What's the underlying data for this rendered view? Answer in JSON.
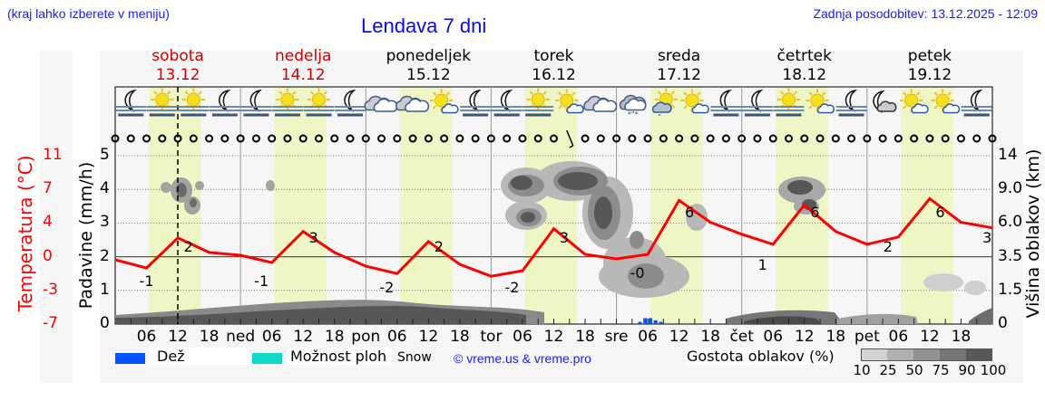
{
  "header": {
    "hint": "(kraj lahko izberete v meniju)",
    "title": "Lendava 7 dni",
    "updated": "Zadnja posodobitev: 13.12.2025 - 12:09"
  },
  "days": [
    {
      "name": "sobota",
      "date": "13.12",
      "color": "#d00000"
    },
    {
      "name": "nedelja",
      "date": "14.12",
      "color": "#d00000"
    },
    {
      "name": "ponedeljek",
      "date": "15.12",
      "color": "#000000"
    },
    {
      "name": "torek",
      "date": "16.12",
      "color": "#000000"
    },
    {
      "name": "sreda",
      "date": "17.12",
      "color": "#000000"
    },
    {
      "name": "četrtek",
      "date": "18.12",
      "color": "#000000"
    },
    {
      "name": "petek",
      "date": "19.12",
      "color": "#000000"
    }
  ],
  "weather_icons": [
    "moon-fog",
    "sun-fog",
    "sun-fog",
    "moon-fog",
    "moon-fog",
    "sun-fog",
    "sun-fog",
    "moon-fog",
    "cloudy",
    "cloudy",
    "sun-cloud",
    "moon-fog",
    "moon-fog",
    "sun-fog",
    "sun-cloud",
    "cloudy",
    "cloudy-snow",
    "sun-cloud-rain",
    "sun-cloud",
    "moon-fog",
    "moon-fog",
    "sun-fog",
    "sun-cloud",
    "moon-fog",
    "moon-cloud",
    "sun-cloud",
    "sun-cloud",
    "moon-fog"
  ],
  "axes": {
    "temp_label": "Temperatura (°C)",
    "temp_ticks": [
      "11",
      "7",
      "4",
      "0",
      "-3",
      "-7"
    ],
    "precip_label": "Padavine (mm/h)",
    "precip_ticks": [
      "5",
      "4",
      "3",
      "2",
      "1",
      "0"
    ],
    "cloud_label": "Višina oblakov (km)",
    "cloud_ticks": [
      "14",
      "9.0",
      "6.0",
      "3.5",
      "1.5",
      "0"
    ],
    "x_ticks": [
      "06",
      "12",
      "18",
      "ned",
      "06",
      "12",
      "18",
      "pon",
      "06",
      "12",
      "18",
      "tor",
      "06",
      "12",
      "18",
      "sre",
      "06",
      "12",
      "18",
      "čet",
      "06",
      "12",
      "18",
      "pet",
      "06",
      "12",
      "18"
    ]
  },
  "legend": {
    "rain_label": "Dež",
    "rain_color": "#0055ff",
    "showers_label": "Možnost ploh",
    "showers_color": "#11d9c8",
    "snow_label": "Snow",
    "credit": "© vreme.us & vreme.pro",
    "cloud_density_label": "Gostota oblakov (%)",
    "cloud_density_ticks": [
      "10",
      "25",
      "50",
      "75",
      "90",
      "100"
    ],
    "cloud_density_colors": [
      "#d3d3d3",
      "#b0b0b0",
      "#929292",
      "#767676",
      "#575757"
    ]
  },
  "chart_data": {
    "type": "line",
    "title": "Lendava 7 dni",
    "xlabel": "",
    "ylabel": "Temperatura (°C)",
    "ylim": [
      -7,
      11
    ],
    "x": [
      "13.12 00",
      "13.12 06",
      "13.12 12",
      "13.12 18",
      "14.12 00",
      "14.12 06",
      "14.12 12",
      "14.12 18",
      "15.12 00",
      "15.12 06",
      "15.12 12",
      "15.12 18",
      "16.12 00",
      "16.12 06",
      "16.12 12",
      "16.12 18",
      "17.12 00",
      "17.12 06",
      "17.12 12",
      "17.12 18",
      "18.12 00",
      "18.12 06",
      "18.12 12",
      "18.12 18",
      "19.12 00",
      "19.12 06",
      "19.12 12",
      "19.12 18",
      "19.12 24"
    ],
    "series": [
      {
        "name": "Temperatura",
        "color": "#ff0000",
        "values": [
          -0.3,
          -1.2,
          2.1,
          0.5,
          0.2,
          -0.6,
          2.8,
          0.5,
          -1.0,
          -1.8,
          1.7,
          -0.8,
          -2.1,
          -1.5,
          3.1,
          0.3,
          -0.2,
          0.3,
          6.2,
          3.8,
          2.5,
          1.4,
          5.7,
          2.8,
          1.4,
          2.2,
          6.4,
          3.8,
          3.2
        ]
      }
    ],
    "annotations": [
      {
        "label": "-1",
        "at": "13.12 06"
      },
      {
        "label": "2",
        "at": "13.12 14"
      },
      {
        "label": "-1",
        "at": "14.12 04"
      },
      {
        "label": "3",
        "at": "14.12 14"
      },
      {
        "label": "-2",
        "at": "15.12 04"
      },
      {
        "label": "2",
        "at": "15.12 14"
      },
      {
        "label": "-2",
        "at": "16.12 04"
      },
      {
        "label": "3",
        "at": "16.12 14"
      },
      {
        "label": "-0",
        "at": "17.12 04"
      },
      {
        "label": "6",
        "at": "17.12 14"
      },
      {
        "label": "1",
        "at": "18.12 04"
      },
      {
        "label": "6",
        "at": "18.12 14"
      },
      {
        "label": "2",
        "at": "19.12 04"
      },
      {
        "label": "6",
        "at": "19.12 14"
      },
      {
        "label": "3",
        "at": "19.12 23"
      }
    ],
    "secondary_axes": {
      "precipitation_mm_h": {
        "ticks": [
          0,
          1,
          2,
          3,
          4,
          5
        ]
      },
      "cloud_height_km": {
        "ticks": [
          0,
          1.5,
          3.5,
          6.0,
          9.0,
          14
        ]
      }
    },
    "precipitation": [
      {
        "at": "17.12 06",
        "value": 0.1,
        "type": "rain"
      }
    ],
    "current_time_marker": "13.12 12:00",
    "grid": true,
    "legend_position": "bottom"
  }
}
